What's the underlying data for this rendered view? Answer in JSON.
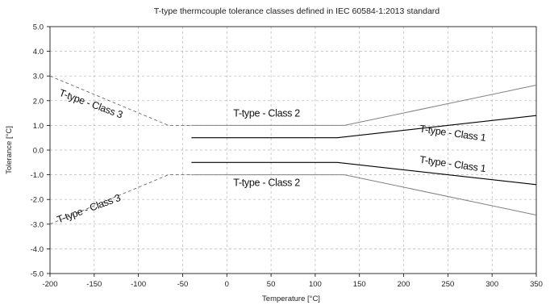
{
  "chart_data": {
    "type": "line",
    "title": "T-type thermcouple tolerance classes defined in IEC 60584-1:2013 standard",
    "xlabel": "Temperature [°C]",
    "ylabel": "Tolerance [°C]",
    "xlim": [
      -200,
      350
    ],
    "ylim": [
      -5,
      5
    ],
    "x_ticks": [
      -200,
      -150,
      -100,
      -50,
      0,
      50,
      100,
      150,
      200,
      250,
      300,
      350
    ],
    "x_tick_labels": [
      "-200",
      "-150",
      "-100",
      "-50",
      "0",
      "50",
      "100",
      "150",
      "200",
      "250",
      "300",
      "350"
    ],
    "y_ticks": [
      -5,
      -4,
      -3,
      -2,
      -1,
      0,
      1,
      2,
      3,
      4,
      5
    ],
    "y_tick_labels": [
      "-5.0",
      "-4.0",
      "-3.0",
      "-2.0",
      "-1.0",
      "0.0",
      "1.0",
      "2.0",
      "3.0",
      "4.0",
      "5.0"
    ],
    "grid": "dashed",
    "series": [
      {
        "key": "class1_pos",
        "color": "#000000",
        "dash": "none",
        "width": 1.1,
        "x": [
          -40,
          125,
          350
        ],
        "y": [
          0.5,
          0.5,
          1.4
        ]
      },
      {
        "key": "class1_neg",
        "color": "#000000",
        "dash": "none",
        "width": 1.1,
        "x": [
          -40,
          125,
          350
        ],
        "y": [
          -0.5,
          -0.5,
          -1.4
        ]
      },
      {
        "key": "class2_pos",
        "color": "#808080",
        "dash": "none",
        "width": 1.0,
        "x": [
          -40,
          133,
          350
        ],
        "y": [
          1.0,
          1.0,
          2.63
        ]
      },
      {
        "key": "class2_neg",
        "color": "#808080",
        "dash": "none",
        "width": 1.0,
        "x": [
          -40,
          133,
          350
        ],
        "y": [
          -1.0,
          -1.0,
          -2.63
        ]
      },
      {
        "key": "class3_pos",
        "color": "#6a6a6a",
        "dash": "4,3",
        "width": 0.9,
        "x": [
          -200,
          -66,
          -40
        ],
        "y": [
          3.0,
          1.0,
          1.0
        ]
      },
      {
        "key": "class3_neg",
        "color": "#6a6a6a",
        "dash": "4,3",
        "width": 0.9,
        "x": [
          -200,
          -66,
          -40
        ],
        "y": [
          -3.0,
          -1.0,
          -1.0
        ]
      }
    ],
    "annotations": [
      {
        "text": "T-type - Class 3",
        "x": -155,
        "y": 1.75,
        "rotate": 20
      },
      {
        "text": "T-type - Class 2",
        "x": 45,
        "y": 1.35,
        "rotate": 0
      },
      {
        "text": "T-type - Class 1",
        "x": 255,
        "y": 0.55,
        "rotate": 8
      },
      {
        "text": "T-type - Class 1",
        "x": 255,
        "y": -0.7,
        "rotate": 8
      },
      {
        "text": "T-type - Class 2",
        "x": 45,
        "y": -1.45,
        "rotate": 0
      },
      {
        "text": "T-type - Class 3",
        "x": -155,
        "y": -2.5,
        "rotate": -20
      }
    ]
  }
}
